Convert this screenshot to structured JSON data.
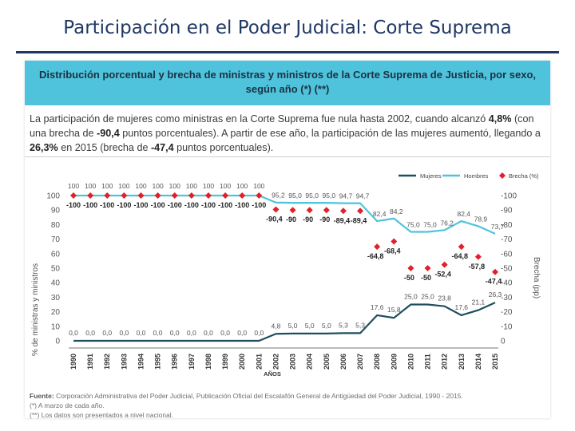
{
  "slide": {
    "title": "Participación en el Poder Judicial: Corte Suprema"
  },
  "panel": {
    "title": "Distribución porcentual y brecha de ministras y ministros de la Corte Suprema de Justicia, por sexo, según año (*) (**)",
    "summary": {
      "p1": "La participación de mujeres como ministras en la Corte Suprema fue nula hasta 2002, cuando alcanzó ",
      "b1": "4,8%",
      "p2": " (con una brecha de ",
      "b2": "-90,4",
      "p3": " puntos porcentuales). A partir de ese año, la participación de las mujeres aumentó, llegando a ",
      "b3": "26,3%",
      "p4": " en 2015 (brecha de ",
      "b4": "-47,4",
      "p5": " puntos porcentuales)."
    },
    "source": {
      "label": "Fuente:",
      "text": " Corporación Administrativa del Poder Judicial, Publicación Oficial del Escalafón General de Antigüedad del Poder Judicial, 1990 - 2015.",
      "note1": "(*) A marzo de cada año.",
      "note2": "(**) Los datos son presentados a nivel nacional."
    }
  },
  "chart_data": {
    "type": "line",
    "x": [
      "1990",
      "1991",
      "1992",
      "1993",
      "1994",
      "1995",
      "1996",
      "1997",
      "1998",
      "1999",
      "2000",
      "2001",
      "2002",
      "2003",
      "2004",
      "2005",
      "2006",
      "2007",
      "2008",
      "2009",
      "2010",
      "2011",
      "2012",
      "2013",
      "2014",
      "2015"
    ],
    "xlabel": "AÑOS",
    "ylabel": "% de ministras y ministros",
    "y2label": "Brecha (pp)",
    "ylim": [
      0,
      100
    ],
    "y2lim": [
      0,
      -100
    ],
    "yticks": [
      "0",
      "10",
      "20",
      "30",
      "40",
      "50",
      "60",
      "70",
      "80",
      "90",
      "100"
    ],
    "y2ticks": [
      "0",
      "-10",
      "-20",
      "-30",
      "-40",
      "-50",
      "-60",
      "-70",
      "-80",
      "-90",
      "-100"
    ],
    "legend_position": "top-right",
    "series": [
      {
        "name": "Mujeres",
        "color": "#1f4e5f",
        "axis": "left",
        "values": [
          0,
          0,
          0,
          0,
          0,
          0,
          0,
          0,
          0,
          0,
          0,
          0,
          4.8,
          5.0,
          5.0,
          5.0,
          5.3,
          5.3,
          17.6,
          15.8,
          25.0,
          25.0,
          23.8,
          17.6,
          21.1,
          26.3
        ],
        "labels": [
          "0,0",
          "0,0",
          "0,0",
          "0,0",
          "0,0",
          "0,0",
          "0,0",
          "0,0",
          "0,0",
          "0,0",
          "0,0",
          "0,0",
          "4,8",
          "5,0",
          "5,0",
          "5,0",
          "5,3",
          "5,3",
          "17,6",
          "15,8",
          "25,0",
          "25,0",
          "23,8",
          "17,6",
          "21,1",
          "26,3"
        ]
      },
      {
        "name": "Hombres",
        "color": "#4fc3dc",
        "axis": "left",
        "values": [
          100,
          100,
          100,
          100,
          100,
          100,
          100,
          100,
          100,
          100,
          100,
          100,
          95.2,
          95.0,
          95.0,
          95.0,
          94.7,
          94.7,
          82.4,
          84.2,
          75.0,
          75.0,
          76.2,
          82.4,
          78.9,
          73.7
        ],
        "labels": [
          "100",
          "100",
          "100",
          "100",
          "100",
          "100",
          "100",
          "100",
          "100",
          "100",
          "100",
          "100",
          "95,2",
          "95,0",
          "95,0",
          "95,0",
          "94,7",
          "94,7",
          "82,4",
          "84,2",
          "75,0",
          "75,0",
          "76,2",
          "82,4",
          "78,9",
          "73,7"
        ]
      },
      {
        "name": "Brecha (%)",
        "color": "#e2202a",
        "axis": "right",
        "values": [
          -100,
          -100,
          -100,
          -100,
          -100,
          -100,
          -100,
          -100,
          -100,
          -100,
          -100,
          -100,
          -90.4,
          -90,
          -90,
          -90,
          -89.4,
          -89.4,
          -64.8,
          -68.4,
          -50,
          -50,
          -52.4,
          -64.8,
          -57.8,
          -47.4
        ],
        "labels": [
          "-100",
          "-100",
          "-100",
          "-100",
          "-100",
          "-100",
          "-100",
          "-100",
          "-100",
          "-100",
          "-100",
          "-100",
          "-90,4",
          "-90",
          "-90",
          "-90",
          "-89,4",
          "-89,4",
          "-64,8",
          "-68,4",
          "-50",
          "-50",
          "-52,4",
          "-64,8",
          "-57,8",
          "-47,4"
        ]
      }
    ]
  }
}
